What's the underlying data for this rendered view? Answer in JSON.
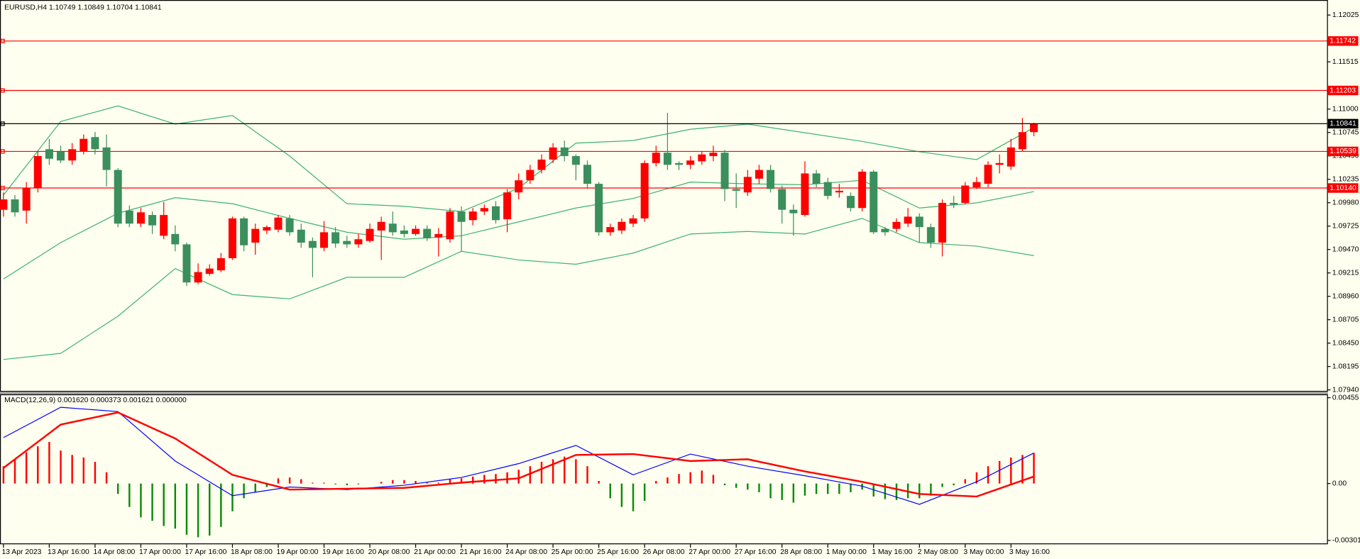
{
  "chart_data": [
    {
      "type": "candlestick",
      "title": "EURUSD,H4  1.10749 1.10849 1.10704 1.10841",
      "categories": [
        "13 Apr 2023",
        null,
        null,
        null,
        "13 Apr 16:00",
        null,
        null,
        null,
        "14 Apr 08:00",
        null,
        null,
        null,
        "17 Apr 00:00",
        null,
        null,
        null,
        "17 Apr 16:00",
        null,
        null,
        null,
        "18 Apr 08:00",
        null,
        null,
        null,
        "19 Apr 00:00",
        null,
        null,
        null,
        "19 Apr 16:00",
        null,
        null,
        null,
        "20 Apr 08:00",
        null,
        null,
        null,
        "21 Apr 00:00",
        null,
        null,
        null,
        "21 Apr 16:00",
        null,
        null,
        null,
        "24 Apr 08:00",
        null,
        null,
        null,
        "25 Apr 00:00",
        null,
        null,
        null,
        "25 Apr 16:00",
        null,
        null,
        null,
        "26 Apr 08:00",
        null,
        null,
        null,
        "27 Apr 00:00",
        null,
        null,
        null,
        "27 Apr 16:00",
        null,
        null,
        null,
        "28 Apr 08:00",
        null,
        null,
        null,
        "1 May 00:00",
        null,
        null,
        null,
        "1 May 16:00",
        null,
        null,
        null,
        "2 May 08:00",
        null,
        null,
        null,
        "3 May 00:00",
        null,
        null,
        null,
        "3 May 16:00",
        null,
        null
      ],
      "open": [
        1.09903,
        1.10016,
        1.09894,
        1.10139,
        1.10563,
        1.10535,
        1.1044,
        1.10535,
        1.10695,
        1.10582,
        1.10337,
        1.09894,
        1.09752,
        1.09846,
        1.0962,
        1.09639,
        1.09526,
        1.09111,
        1.09205,
        1.09243,
        1.09375,
        1.09809,
        1.09545,
        1.09677,
        1.09686,
        1.09809,
        1.09686,
        1.09563,
        1.09488,
        1.09658,
        1.09563,
        1.09526,
        1.09563,
        1.09677,
        1.09752,
        1.09677,
        1.09639,
        1.09695,
        1.09601,
        1.09582,
        1.09884,
        1.0979,
        1.09884,
        1.09941,
        1.09799,
        1.10092,
        1.10224,
        1.10337,
        1.1045,
        1.10582,
        1.10488,
        1.10393,
        1.10186,
        1.09658,
        1.09677,
        1.09752,
        1.09809,
        1.10412,
        1.10525,
        1.10412,
        1.10393,
        1.10431,
        1.10488,
        1.10525,
        1.10129,
        1.10092,
        1.10242,
        1.10337,
        1.10129,
        1.09903,
        1.09846,
        1.10299,
        1.10205,
        1.10092,
        1.10054,
        1.09922,
        1.10318,
        1.09695,
        1.09695,
        1.09752,
        1.09828,
        1.09714,
        1.09545,
        1.09978,
        1.09978,
        1.10148,
        1.10186,
        1.10393,
        1.10374,
        1.10563,
        1.10749
      ],
      "high": [
        1.10092,
        1.10063,
        1.10205,
        1.10535,
        1.10676,
        1.10601,
        1.10629,
        1.10723,
        1.10752,
        1.10723,
        1.10356,
        1.0995,
        1.09922,
        1.09884,
        1.09988,
        1.09733,
        1.09545,
        1.09318,
        1.09309,
        1.09431,
        1.09828,
        1.09828,
        1.09752,
        1.09733,
        1.09846,
        1.09846,
        1.09752,
        1.09601,
        1.0978,
        1.09714,
        1.0962,
        1.09639,
        1.09752,
        1.09828,
        1.09884,
        1.09733,
        1.09733,
        1.09733,
        1.09705,
        1.09922,
        1.09941,
        1.09922,
        1.0996,
        1.09997,
        1.10129,
        1.10299,
        1.10393,
        1.10506,
        1.10629,
        1.10657,
        1.10506,
        1.1044,
        1.10205,
        1.09752,
        1.09809,
        1.09846,
        1.1044,
        1.10601,
        1.10959,
        1.10431,
        1.10488,
        1.10535,
        1.10601,
        1.10554,
        1.10299,
        1.10337,
        1.10393,
        1.10393,
        1.10167,
        1.0996,
        1.10431,
        1.10337,
        1.10252,
        1.10186,
        1.10092,
        1.10346,
        1.10337,
        1.09714,
        1.09809,
        1.09922,
        1.09865,
        1.09752,
        1.10016,
        1.10054,
        1.10205,
        1.10261,
        1.10431,
        1.10506,
        1.10676,
        1.10903,
        1.10849
      ],
      "low": [
        1.09828,
        1.09828,
        1.09752,
        1.10092,
        1.10393,
        1.10412,
        1.10393,
        1.10506,
        1.10506,
        1.10158,
        1.09714,
        1.09714,
        1.09714,
        1.09639,
        1.09582,
        1.0945,
        1.09073,
        1.09092,
        1.09186,
        1.09224,
        1.09356,
        1.0945,
        1.09413,
        1.09639,
        1.09658,
        1.0962,
        1.09488,
        1.09167,
        1.0945,
        1.09488,
        1.09488,
        1.09488,
        1.09545,
        1.09356,
        1.0962,
        1.09601,
        1.0962,
        1.09563,
        1.09394,
        1.09545,
        1.0945,
        1.09733,
        1.09846,
        1.09752,
        1.09658,
        1.10016,
        1.10186,
        1.10299,
        1.10412,
        1.10431,
        1.10224,
        1.10129,
        1.0962,
        1.0962,
        1.09639,
        1.09714,
        1.09771,
        1.10374,
        1.10337,
        1.10337,
        1.10346,
        1.10393,
        1.10431,
        1.09997,
        1.09922,
        1.10054,
        1.10186,
        1.10092,
        1.09752,
        1.0962,
        1.09828,
        1.10148,
        1.10016,
        1.10035,
        1.09884,
        1.09884,
        1.09639,
        1.0962,
        1.09658,
        1.09714,
        1.09545,
        1.09488,
        1.09394,
        1.09922,
        1.0996,
        1.10129,
        1.10148,
        1.10299,
        1.10337,
        1.10535,
        1.10704
      ],
      "close": [
        1.10016,
        1.09875,
        1.10139,
        1.10488,
        1.10459,
        1.1044,
        1.10563,
        1.10676,
        1.10563,
        1.10337,
        1.09752,
        1.09752,
        1.09875,
        1.09733,
        1.09846,
        1.09526,
        1.09111,
        1.09224,
        1.09262,
        1.09375,
        1.09809,
        1.09516,
        1.09695,
        1.09714,
        1.09818,
        1.09658,
        1.09545,
        1.09488,
        1.09658,
        1.09535,
        1.09526,
        1.09582,
        1.09695,
        1.09771,
        1.09658,
        1.09639,
        1.09695,
        1.09592,
        1.09639,
        1.09884,
        1.09771,
        1.09884,
        1.09922,
        1.0979,
        1.10092,
        1.10224,
        1.10337,
        1.1045,
        1.10582,
        1.10488,
        1.10393,
        1.10186,
        1.09658,
        1.09714,
        1.09771,
        1.09809,
        1.10412,
        1.10525,
        1.10393,
        1.10393,
        1.1044,
        1.10506,
        1.10525,
        1.10129,
        1.1011,
        1.10261,
        1.10337,
        1.10129,
        1.09903,
        1.09865,
        1.10299,
        1.10186,
        1.10054,
        1.1011,
        1.09922,
        1.10318,
        1.09658,
        1.09658,
        1.09771,
        1.09828,
        1.09714,
        1.09545,
        1.09978,
        1.0996,
        1.10167,
        1.10205,
        1.10393,
        1.10412,
        1.10582,
        1.10749,
        1.10841
      ],
      "up_color": "#ff0000",
      "down_color": "#3a8f5c",
      "series": [
        {
          "color": "#3cb371",
          "x": [
            0,
            5,
            10,
            15,
            20,
            25,
            30,
            35,
            40,
            45,
            50,
            55,
            60,
            65,
            70,
            75,
            80,
            85,
            90
          ],
          "values": [
            1.10063,
            1.10865,
            1.11035,
            1.10836,
            1.10931,
            1.10488,
            1.09969,
            1.09941,
            1.09884,
            1.10139,
            1.10629,
            1.10657,
            1.1078,
            1.10836,
            1.10742,
            1.10648,
            1.10535,
            1.1045,
            1.10799
          ]
        },
        {
          "color": "#3cb371",
          "x": [
            0,
            5,
            10,
            15,
            20,
            25,
            30,
            35,
            40,
            45,
            50,
            55,
            60,
            65,
            70,
            75,
            80,
            85,
            90
          ],
          "values": [
            1.09149,
            1.09545,
            1.09865,
            1.10035,
            1.09969,
            1.09809,
            1.09658,
            1.09582,
            1.0962,
            1.09771,
            1.09922,
            1.10026,
            1.10205,
            1.10186,
            1.10176,
            1.10224,
            1.09922,
            1.09978,
            1.10101
          ]
        },
        {
          "color": "#3cb371",
          "x": [
            0,
            5,
            10,
            15,
            20,
            25,
            30,
            35,
            40,
            45,
            50,
            55,
            60,
            65,
            70,
            75,
            80,
            85,
            90
          ],
          "values": [
            1.08272,
            1.08338,
            1.08743,
            1.09262,
            1.08979,
            1.08932,
            1.09167,
            1.09167,
            1.0945,
            1.09356,
            1.09309,
            1.09431,
            1.09639,
            1.09667,
            1.09639,
            1.09809,
            1.09545,
            1.09507,
            1.09403
          ]
        }
      ],
      "levels": [
        {
          "value": 1.11742
        },
        {
          "value": 1.11203
        },
        {
          "value": 1.10539
        },
        {
          "value": 1.1014,
          "label": "1.10140"
        }
      ],
      "level_color": "#ff0000",
      "last_price": 1.10841,
      "last_price_color": "#000000",
      "ylim": [
        1.0792,
        1.1217
      ],
      "yticks": [
        {
          "value": 1.0794,
          "label": "1.07940"
        },
        1.08195,
        {
          "value": 1.0845,
          "label": "1.08450"
        },
        1.08705,
        {
          "value": 1.0896,
          "label": "1.08960"
        },
        1.09215,
        {
          "value": 1.0947,
          "label": "1.09470"
        },
        1.09725,
        {
          "value": 1.0998,
          "label": "1.09980"
        },
        1.10235,
        {
          "value": 1.1049,
          "label": "1.10490"
        },
        1.10745,
        {
          "value": 1.11,
          "label": "1.11000"
        },
        1.11515,
        1.12025
      ]
    },
    {
      "type": "macd",
      "title": "MACD(12,26,9) 0.001620 0.000373 0.001621 0.000000",
      "histogram": {
        "up_color": "#ff0000",
        "down_color": "#0a8a0a",
        "values": [
          0.000919,
          0.001287,
          0.001655,
          0.001976,
          0.002206,
          0.001746,
          0.001517,
          0.001379,
          0.001149,
          0.000597,
          -0.000552,
          -0.001241,
          -0.001792,
          -0.001976,
          -0.002252,
          -0.00239,
          -0.002712,
          -0.00285,
          -0.002758,
          -0.002298,
          -0.001471,
          -0.000781,
          -0.00046,
          -0.000184,
          0.000276,
          0.000322,
          0.00023,
          4.6e-05,
          4.6e-05,
          -4.6e-05,
          -9.2e-05,
          -4.6e-05,
          0,
          9.2e-05,
          0.000184,
          0.000184,
          0.000138,
          4.6e-05,
          4.6e-05,
          0.00023,
          0.000276,
          0.000368,
          0.00046,
          0.000506,
          0.000597,
          0.000735,
          0.000919,
          0.001149,
          0.001287,
          0.001425,
          0.001287,
          0.000919,
          0.000138,
          -0.000781,
          -0.001241,
          -0.001471,
          -0.000919,
          0.000138,
          0.000322,
          0.000506,
          0.000597,
          0.000689,
          0.00046,
          -9.2e-05,
          -0.00023,
          -0.000322,
          -0.00046,
          -0.000781,
          -0.000873,
          -0.001011,
          -0.000643,
          -0.000552,
          -0.000552,
          -0.000552,
          -0.00046,
          -0.000322,
          -0.000689,
          -0.000827,
          -0.000873,
          -0.000781,
          -0.000781,
          -0.000643,
          -0.000184,
          -9.2e-05,
          0.00023,
          0.000597,
          0.000919,
          0.001195,
          0.001379,
          0.001517,
          0.001621
        ]
      },
      "series": [
        {
          "color": "#0000ff",
          "width": 1,
          "x": [
            0,
            5,
            10,
            15,
            20,
            25,
            30,
            35,
            40,
            45,
            50,
            55,
            60,
            65,
            70,
            75,
            80,
            85,
            90
          ],
          "values": [
            0.002436,
            0.004044,
            0.003815,
            0.001195,
            -0.000643,
            -0.000184,
            -0.000322,
            -9.2e-05,
            0.000322,
            0.001057,
            0.002022,
            0.00046,
            0.001563,
            0.000919,
            0.000414,
            -0.000138,
            -0.001103,
            9.2e-05,
            0.00162
          ]
        },
        {
          "color": "#ff0000",
          "width": 2,
          "x": [
            0,
            5,
            10,
            15,
            20,
            25,
            30,
            35,
            40,
            45,
            50,
            55,
            60,
            65,
            70,
            75,
            80,
            85,
            90
          ],
          "values": [
            0.000827,
            0.003125,
            0.003769,
            0.00239,
            0.00046,
            -0.000322,
            -0.000276,
            -0.00023,
            4.6e-05,
            0.000276,
            0.001517,
            0.001563,
            0.001195,
            0.001287,
            0.000643,
            9.2e-05,
            -0.000552,
            -0.000689,
            0.000373
          ]
        }
      ],
      "ylim": [
        -0.00322,
        0.00473
      ],
      "yticks": [
        {
          "value": -0.003014,
          "label": "-0.003014"
        },
        {
          "value": 0,
          "label": "0.00"
        },
        0.00455
      ]
    }
  ]
}
